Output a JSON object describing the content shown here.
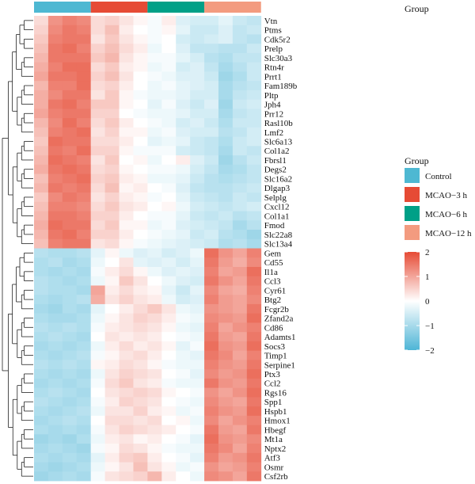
{
  "chart_data": {
    "type": "heatmap",
    "group_title": "Group",
    "legend_title": "Group",
    "groups": [
      {
        "name": "Control",
        "color": "#4EB8D2",
        "samples": 4
      },
      {
        "name": "MCAO−3 h",
        "color": "#E64B35",
        "samples": 4
      },
      {
        "name": "MCAO−6 h",
        "color": "#00A087",
        "samples": 4
      },
      {
        "name": "MCAO−12 h",
        "color": "#F39B7F",
        "samples": 4
      }
    ],
    "genes": [
      "Vtn",
      "Ptms",
      "Cdk5r2",
      "Prelp",
      "Slc30a3",
      "Rtn4r",
      "Prrt1",
      "Fam189b",
      "Pltp",
      "Jph4",
      "Prr12",
      "Rasl10b",
      "Lmf2",
      "Slc6a13",
      "Col1a2",
      "Fbrsl1",
      "Degs2",
      "Slc16a2",
      "Dlgap3",
      "Selplg",
      "Cxcl12",
      "Col1a1",
      "Fmod",
      "Slc22a8",
      "Slc13a4",
      "Gem",
      "Cd55",
      "Il1a",
      "Ccl3",
      "Cyr61",
      "Btg2",
      "Fcgr2b",
      "Zfand2a",
      "Cd86",
      "Adamts1",
      "Socs3",
      "Timp1",
      "Serpine1",
      "Ptx3",
      "Ccl2",
      "Rgs16",
      "Spp1",
      "Hspb1",
      "Hmox1",
      "Hbegf",
      "Mt1a",
      "Nptx2",
      "Atf3",
      "Osmr",
      "Csf2rb"
    ],
    "values": [
      [
        0.4,
        1.2,
        1.4,
        1.3,
        0.4,
        0.5,
        0.3,
        0.1,
        -0.1,
        0.2,
        -0.4,
        -0.5,
        -0.5,
        -0.3,
        -0.6,
        -0.7
      ],
      [
        0.5,
        1.3,
        1.5,
        1.4,
        0.4,
        0.7,
        0.2,
        0.0,
        -0.1,
        0.1,
        -0.3,
        -0.6,
        -0.6,
        -0.4,
        -0.7,
        -0.6
      ],
      [
        0.6,
        1.4,
        1.5,
        1.5,
        0.3,
        0.6,
        0.3,
        0.1,
        -0.1,
        0.0,
        -0.5,
        -0.6,
        -0.5,
        -0.4,
        -0.7,
        -0.8
      ],
      [
        0.7,
        1.5,
        1.6,
        1.4,
        0.5,
        0.7,
        0.4,
        0.2,
        -0.2,
        0.0,
        -0.4,
        -0.7,
        -0.7,
        -0.8,
        -0.8,
        -0.6
      ],
      [
        0.8,
        1.5,
        1.5,
        1.5,
        0.6,
        0.8,
        0.3,
        0.1,
        -0.1,
        -0.1,
        -0.3,
        -0.5,
        -0.8,
        -0.9,
        -0.7,
        -0.7
      ],
      [
        0.9,
        1.4,
        1.6,
        1.6,
        0.4,
        0.6,
        0.2,
        0.1,
        -0.2,
        -0.1,
        -0.5,
        -0.4,
        -0.7,
        -1.0,
        -0.8,
        -0.6
      ],
      [
        1.0,
        1.5,
        1.5,
        1.6,
        0.5,
        0.7,
        0.3,
        0.0,
        -0.1,
        -0.2,
        -0.4,
        -0.4,
        -0.6,
        -1.1,
        -0.9,
        -0.6
      ],
      [
        0.8,
        1.4,
        1.4,
        1.6,
        0.4,
        0.5,
        0.2,
        0.0,
        -0.2,
        -0.1,
        -0.3,
        -0.4,
        -0.5,
        -1.0,
        -0.8,
        -0.7
      ],
      [
        0.9,
        1.3,
        1.5,
        1.5,
        0.3,
        0.6,
        0.1,
        -0.1,
        -0.2,
        -0.2,
        -0.3,
        -0.5,
        -0.5,
        -1.0,
        -0.7,
        -0.6
      ],
      [
        0.9,
        1.5,
        1.6,
        1.4,
        0.6,
        0.6,
        0.1,
        0.0,
        -0.3,
        -0.1,
        -0.4,
        -0.6,
        -0.4,
        -1.1,
        -0.6,
        -0.5
      ],
      [
        1.0,
        1.4,
        1.5,
        1.5,
        0.5,
        0.5,
        0.0,
        -0.1,
        -0.2,
        -0.2,
        -0.3,
        -0.5,
        -0.5,
        -1.0,
        -0.7,
        -0.6
      ],
      [
        0.8,
        1.3,
        1.6,
        1.4,
        0.4,
        0.6,
        0.2,
        0.0,
        -0.1,
        -0.2,
        -0.5,
        -0.4,
        -0.6,
        -0.9,
        -0.6,
        -0.6
      ],
      [
        0.7,
        1.4,
        1.5,
        1.6,
        0.3,
        0.5,
        0.1,
        0.1,
        -0.2,
        -0.1,
        -0.4,
        -0.5,
        -0.5,
        -0.8,
        -0.7,
        -0.5
      ],
      [
        0.6,
        1.6,
        1.5,
        1.5,
        0.4,
        0.4,
        0.2,
        0.0,
        -0.3,
        -0.2,
        -0.3,
        -0.6,
        -0.7,
        -0.9,
        -0.6,
        -0.5
      ],
      [
        0.7,
        1.5,
        1.4,
        1.6,
        0.5,
        0.5,
        0.1,
        -0.1,
        -0.1,
        -0.1,
        -0.5,
        -0.6,
        -0.7,
        -1.0,
        -0.6,
        -0.7
      ],
      [
        0.8,
        1.6,
        1.5,
        1.4,
        0.3,
        0.6,
        0.0,
        0.1,
        -0.2,
        0.0,
        0.2,
        -0.4,
        -0.6,
        -1.1,
        -0.8,
        -0.6
      ],
      [
        0.9,
        1.5,
        1.6,
        1.5,
        0.4,
        0.5,
        0.1,
        0.0,
        -0.1,
        -0.1,
        -0.2,
        -0.5,
        -0.7,
        -1.0,
        -0.9,
        -0.7
      ],
      [
        0.7,
        1.4,
        1.5,
        1.6,
        0.5,
        0.6,
        0.2,
        0.1,
        -0.2,
        -0.2,
        -0.3,
        -0.6,
        -0.8,
        -0.9,
        -0.8,
        -0.7
      ],
      [
        0.8,
        1.5,
        1.4,
        1.5,
        0.4,
        0.7,
        0.1,
        0.2,
        0.0,
        -0.1,
        -0.4,
        -0.7,
        -0.8,
        -0.8,
        -0.7,
        -0.6
      ],
      [
        0.6,
        1.3,
        1.5,
        1.4,
        0.3,
        0.5,
        0.2,
        0.1,
        -0.1,
        0.0,
        -0.3,
        -0.6,
        -0.7,
        -0.8,
        -0.6,
        -0.7
      ],
      [
        0.7,
        1.4,
        1.4,
        1.3,
        0.4,
        0.6,
        0.3,
        0.2,
        0.0,
        0.1,
        -0.2,
        -0.5,
        -0.6,
        -0.7,
        -0.6,
        -0.5
      ],
      [
        0.8,
        1.5,
        1.5,
        1.4,
        0.5,
        0.5,
        0.2,
        0.0,
        -0.1,
        -0.1,
        -0.3,
        -0.6,
        -0.7,
        -0.6,
        -0.8,
        -0.7
      ],
      [
        0.9,
        1.6,
        1.5,
        1.5,
        0.4,
        0.6,
        0.1,
        0.1,
        -0.2,
        -0.1,
        -0.4,
        -0.5,
        -0.6,
        -0.7,
        -1.0,
        -0.8
      ],
      [
        0.8,
        1.5,
        1.6,
        1.4,
        0.5,
        0.5,
        0.2,
        0.0,
        -0.1,
        -0.2,
        -0.3,
        -0.6,
        -0.5,
        -0.8,
        -0.9,
        -1.1
      ],
      [
        0.7,
        1.4,
        1.5,
        1.5,
        0.3,
        0.4,
        0.1,
        -0.1,
        -0.2,
        -0.3,
        -0.4,
        -0.5,
        -0.6,
        -0.9,
        -0.8,
        -1.0
      ],
      [
        -0.8,
        -0.9,
        -0.9,
        -0.8,
        -0.3,
        0.1,
        -0.2,
        -0.4,
        -0.3,
        -0.5,
        -0.4,
        -0.2,
        1.6,
        1.2,
        1.0,
        1.4
      ],
      [
        -0.9,
        -0.8,
        -1.0,
        -0.9,
        -0.2,
        0.0,
        0.3,
        -0.3,
        -0.4,
        -0.3,
        -0.5,
        -0.3,
        1.5,
        1.1,
        0.9,
        1.3
      ],
      [
        -0.9,
        -1.0,
        -0.9,
        -1.0,
        -0.1,
        0.2,
        0.4,
        0.1,
        -0.2,
        -0.4,
        -0.3,
        -0.4,
        1.4,
        1.0,
        1.1,
        1.6
      ],
      [
        -0.8,
        -0.9,
        -1.0,
        -0.9,
        -0.2,
        0.1,
        0.6,
        0.3,
        0.0,
        -0.2,
        -0.4,
        -0.5,
        1.5,
        1.2,
        1.0,
        1.5
      ],
      [
        -0.8,
        -0.9,
        -0.9,
        -1.0,
        1.0,
        0.2,
        0.4,
        0.2,
        0.1,
        -0.3,
        -0.6,
        -0.3,
        1.3,
        1.0,
        0.9,
        1.4
      ],
      [
        -0.9,
        -1.0,
        -0.9,
        -0.8,
        0.9,
        0.3,
        0.5,
        0.3,
        0.2,
        -0.2,
        -0.5,
        -0.4,
        1.4,
        1.1,
        1.0,
        1.3
      ],
      [
        -1.0,
        -1.1,
        -0.9,
        -1.0,
        -0.3,
        0.0,
        0.2,
        0.4,
        0.6,
        0.3,
        -0.2,
        -0.3,
        1.2,
        1.1,
        1.0,
        1.5
      ],
      [
        -0.9,
        -1.0,
        -1.0,
        -0.9,
        -0.2,
        0.1,
        0.3,
        0.5,
        0.4,
        0.2,
        -0.1,
        -0.2,
        1.3,
        1.2,
        1.1,
        1.6
      ],
      [
        -0.8,
        -0.9,
        -0.8,
        -0.9,
        -0.1,
        0.2,
        0.3,
        0.4,
        0.3,
        0.1,
        -0.2,
        -0.3,
        1.4,
        1.0,
        1.2,
        1.4
      ],
      [
        -0.9,
        -0.8,
        -0.9,
        -1.0,
        0.0,
        0.3,
        0.2,
        0.3,
        0.2,
        0.0,
        -0.1,
        -0.2,
        1.5,
        1.1,
        1.0,
        1.5
      ],
      [
        -1.0,
        -0.9,
        -1.0,
        -0.9,
        -0.2,
        0.2,
        0.4,
        0.2,
        0.3,
        0.1,
        -0.3,
        -0.1,
        1.6,
        1.2,
        1.1,
        1.6
      ],
      [
        -0.9,
        -1.0,
        -0.9,
        -0.8,
        -0.1,
        0.1,
        0.3,
        0.4,
        0.2,
        0.0,
        -0.2,
        -0.3,
        1.5,
        1.3,
        1.0,
        1.4
      ],
      [
        -0.8,
        -0.9,
        -0.8,
        -0.9,
        0.1,
        0.2,
        0.4,
        0.3,
        0.1,
        -0.1,
        -0.2,
        -0.2,
        1.4,
        1.2,
        1.1,
        1.5
      ],
      [
        -0.9,
        -1.0,
        -0.9,
        -1.0,
        -0.2,
        0.3,
        0.5,
        0.4,
        0.3,
        0.0,
        -0.1,
        -0.3,
        1.3,
        1.1,
        1.2,
        1.6
      ],
      [
        -1.0,
        -0.9,
        -1.0,
        -0.9,
        -0.1,
        0.4,
        0.6,
        0.3,
        0.2,
        -0.1,
        -0.2,
        -0.2,
        1.5,
        1.2,
        1.1,
        1.5
      ],
      [
        -0.9,
        -0.8,
        -0.9,
        -1.0,
        0.0,
        0.3,
        0.4,
        0.5,
        0.4,
        0.1,
        0.0,
        -0.1,
        1.2,
        1.0,
        1.2,
        1.6
      ],
      [
        -0.8,
        -0.9,
        -1.0,
        -0.9,
        -0.1,
        0.2,
        0.5,
        0.4,
        0.3,
        0.0,
        -0.1,
        -0.2,
        1.3,
        1.1,
        1.0,
        1.5
      ],
      [
        -0.9,
        -1.0,
        -0.9,
        -0.8,
        -0.2,
        0.3,
        0.3,
        0.5,
        0.2,
        0.1,
        -0.2,
        -0.1,
        1.4,
        1.2,
        1.1,
        1.6
      ],
      [
        -1.0,
        -0.9,
        -0.8,
        -0.9,
        0.0,
        0.4,
        0.4,
        0.3,
        0.4,
        0.0,
        0.1,
        -0.2,
        1.3,
        1.0,
        1.2,
        1.4
      ],
      [
        -0.9,
        -1.0,
        -0.9,
        -1.0,
        -0.1,
        0.3,
        0.5,
        0.4,
        0.3,
        0.2,
        0.0,
        -0.1,
        1.5,
        1.1,
        1.0,
        1.5
      ],
      [
        -1.1,
        -1.0,
        -1.1,
        -0.9,
        -0.2,
        0.2,
        0.3,
        0.1,
        0.2,
        0.0,
        -0.1,
        -0.3,
        1.6,
        1.2,
        1.1,
        1.3
      ],
      [
        -1.0,
        -0.9,
        -1.0,
        -1.1,
        -0.1,
        0.1,
        0.4,
        0.3,
        0.1,
        -0.1,
        -0.2,
        -0.2,
        1.5,
        1.3,
        1.0,
        1.4
      ],
      [
        -0.9,
        -1.0,
        -0.9,
        -1.0,
        -0.3,
        0.2,
        0.5,
        0.6,
        0.2,
        0.0,
        -0.1,
        -0.3,
        1.4,
        1.1,
        1.2,
        1.5
      ],
      [
        -1.0,
        -1.1,
        -1.0,
        -0.9,
        -0.2,
        0.1,
        0.3,
        0.7,
        0.3,
        0.1,
        -0.2,
        -0.1,
        1.2,
        1.0,
        1.1,
        1.4
      ],
      [
        -1.1,
        -1.0,
        -0.9,
        -1.0,
        -0.1,
        0.3,
        0.4,
        0.5,
        0.8,
        0.2,
        0.0,
        -0.2,
        1.3,
        1.2,
        1.0,
        1.5
      ]
    ],
    "color_scale": {
      "min": -2,
      "max": 2,
      "ticks": [
        2,
        1,
        0,
        -1,
        -2
      ],
      "low_color": "#4EB5D6",
      "mid_color": "#FFFFFF",
      "high_color": "#E64B35"
    },
    "row_dendrogram": true,
    "legend_position": "right"
  }
}
